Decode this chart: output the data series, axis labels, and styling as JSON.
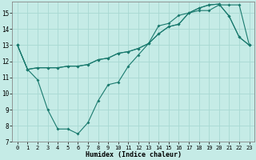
{
  "xlabel": "Humidex (Indice chaleur)",
  "bg_color": "#c5ebe6",
  "line_color": "#1a7a6e",
  "grid_color": "#a8d8d2",
  "xlim": [
    -0.5,
    23.5
  ],
  "ylim": [
    7,
    15.7
  ],
  "yticks": [
    7,
    8,
    9,
    10,
    11,
    12,
    13,
    14,
    15
  ],
  "xticks": [
    0,
    1,
    2,
    3,
    4,
    5,
    6,
    7,
    8,
    9,
    10,
    11,
    12,
    13,
    14,
    15,
    16,
    17,
    18,
    19,
    20,
    21,
    22,
    23
  ],
  "line1_x": [
    0,
    1,
    2,
    3,
    4,
    5,
    6,
    7,
    8,
    9,
    10,
    11,
    12,
    13,
    14,
    15,
    16,
    17,
    18,
    19,
    20,
    21,
    22,
    23
  ],
  "line1_y": [
    13.0,
    11.5,
    11.6,
    11.6,
    11.6,
    11.7,
    11.7,
    11.8,
    12.1,
    12.2,
    12.5,
    12.6,
    12.8,
    13.1,
    13.7,
    14.15,
    14.3,
    15.0,
    15.15,
    15.15,
    15.5,
    15.5,
    15.5,
    13.0
  ],
  "line2_x": [
    0,
    1,
    2,
    3,
    4,
    5,
    6,
    7,
    8,
    9,
    10,
    11,
    12,
    13,
    14,
    15,
    16,
    17,
    18,
    19,
    20,
    21,
    22,
    23
  ],
  "line2_y": [
    13.0,
    11.5,
    11.6,
    11.6,
    11.6,
    11.7,
    11.7,
    11.8,
    12.1,
    12.2,
    12.5,
    12.6,
    12.8,
    13.1,
    13.7,
    14.15,
    14.3,
    15.0,
    15.3,
    15.5,
    15.55,
    14.8,
    13.5,
    13.0
  ],
  "line3_x": [
    0,
    1,
    2,
    3,
    4,
    5,
    6,
    7,
    8,
    9,
    10,
    11,
    12,
    13,
    14,
    15,
    16,
    17,
    18,
    19,
    20,
    21,
    22,
    23
  ],
  "line3_y": [
    13.0,
    11.5,
    10.85,
    9.0,
    7.8,
    7.8,
    7.5,
    8.2,
    9.55,
    10.55,
    10.7,
    11.7,
    12.4,
    13.1,
    14.2,
    14.35,
    14.85,
    15.0,
    15.3,
    15.5,
    15.55,
    14.8,
    13.5,
    13.0
  ],
  "markersize": 2.0,
  "linewidth": 0.8
}
